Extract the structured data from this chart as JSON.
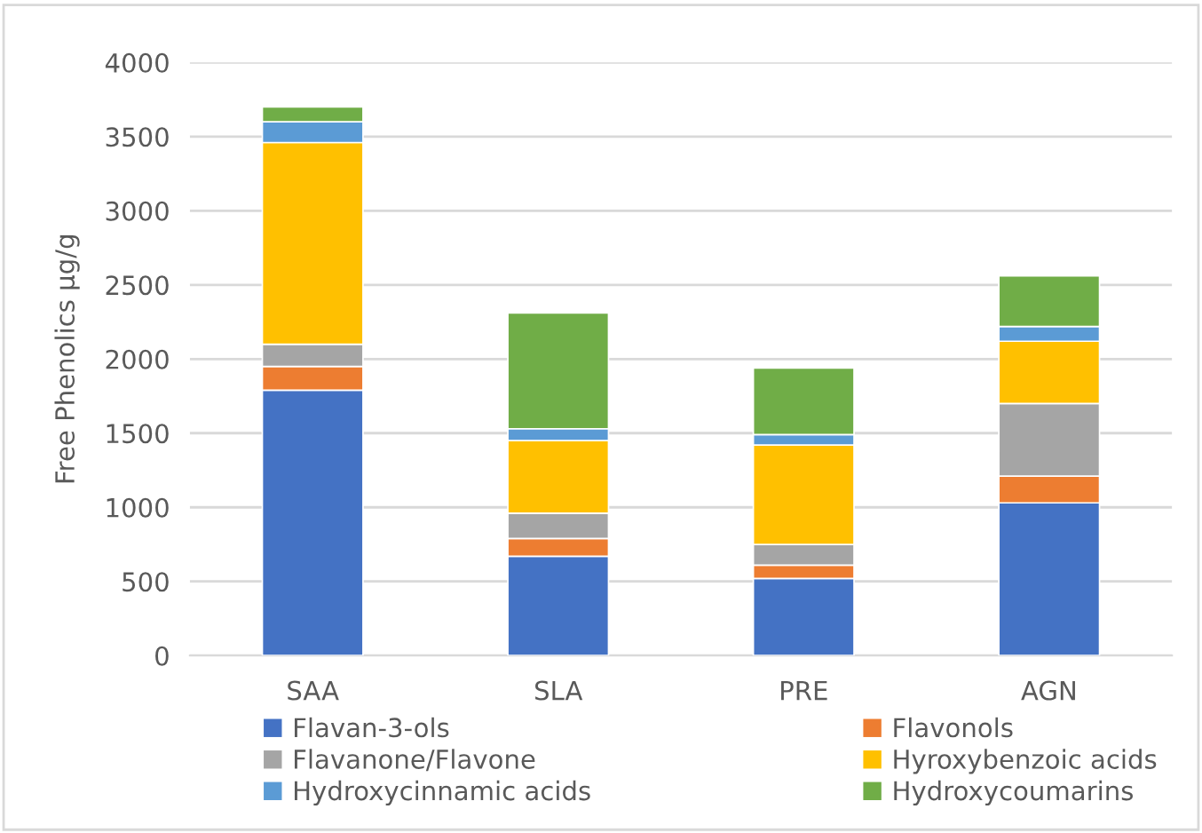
{
  "chart_data": {
    "type": "bar",
    "stacked": true,
    "ylabel": "Free Phenolics µg/g",
    "categories": [
      "SAA",
      "SLA",
      "PRE",
      "AGN"
    ],
    "series": [
      {
        "name": "Flavan-3-ols",
        "color": "#4472c4",
        "values": [
          1790,
          670,
          520,
          1030
        ]
      },
      {
        "name": "Flavonols",
        "color": "#ed7d31",
        "values": [
          160,
          120,
          90,
          180
        ]
      },
      {
        "name": "Flavanone/Flavone",
        "color": "#a5a5a5",
        "values": [
          150,
          170,
          140,
          490
        ]
      },
      {
        "name": "Hyroxybenzoic acids",
        "color": "#ffc000",
        "values": [
          1360,
          490,
          670,
          420
        ]
      },
      {
        "name": "Hydroxycinnamic acids",
        "color": "#5b9bd5",
        "values": [
          140,
          80,
          70,
          100
        ]
      },
      {
        "name": "Hydroxycoumarins",
        "color": "#70ad47",
        "values": [
          100,
          780,
          450,
          340
        ]
      }
    ],
    "ylim": [
      0,
      4000
    ],
    "yticks": [
      0,
      500,
      1000,
      1500,
      2000,
      2500,
      3000,
      3500,
      4000
    ],
    "grid": "y",
    "legend": "bottom"
  }
}
